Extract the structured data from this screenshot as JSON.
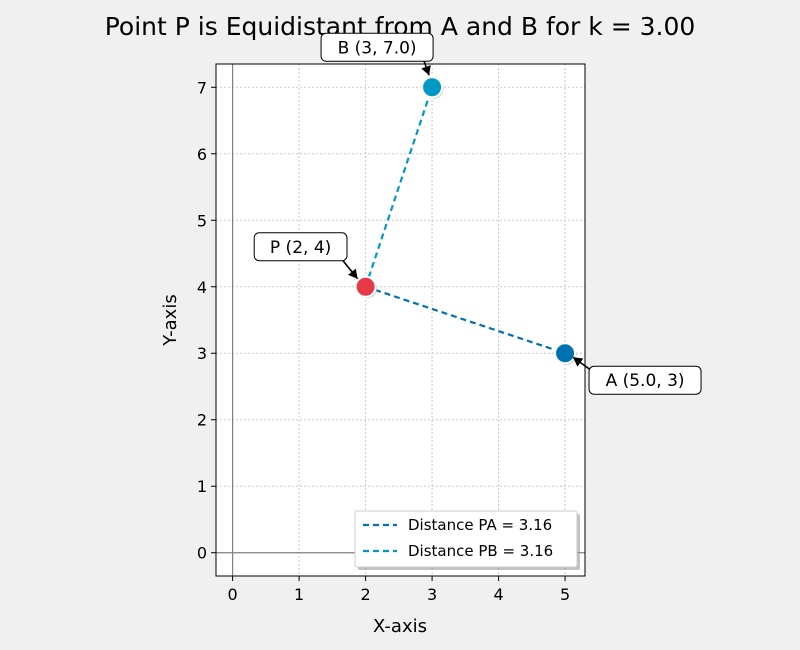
{
  "chart_data": {
    "type": "scatter",
    "title": "Point P is Equidistant from A and B for k = 3.00",
    "xlabel": "X-axis",
    "ylabel": "Y-axis",
    "xlim": [
      -0.25,
      5.3
    ],
    "ylim": [
      -0.35,
      7.35
    ],
    "xticks": [
      "0",
      "1",
      "2",
      "3",
      "4",
      "5"
    ],
    "yticks": [
      "0",
      "1",
      "2",
      "3",
      "4",
      "5",
      "6",
      "7"
    ],
    "grid": true,
    "legend_position": "lower right",
    "points": [
      {
        "id": "A",
        "x": 5.0,
        "y": 3,
        "color": "#0072b2",
        "label": "A (5.0, 3)"
      },
      {
        "id": "B",
        "x": 3,
        "y": 7.0,
        "color": "#0099c6",
        "label": "B (3, 7.0)"
      },
      {
        "id": "P",
        "x": 2,
        "y": 4,
        "color": "#e63946",
        "label": "P (2, 4)"
      }
    ],
    "series": [
      {
        "name": "Distance PA = 3.16",
        "from": "P",
        "to": "A",
        "color": "#0072b2",
        "style": "dashed"
      },
      {
        "name": "Distance PB = 3.16",
        "from": "P",
        "to": "B",
        "color": "#0099c6",
        "style": "dashed"
      }
    ]
  }
}
